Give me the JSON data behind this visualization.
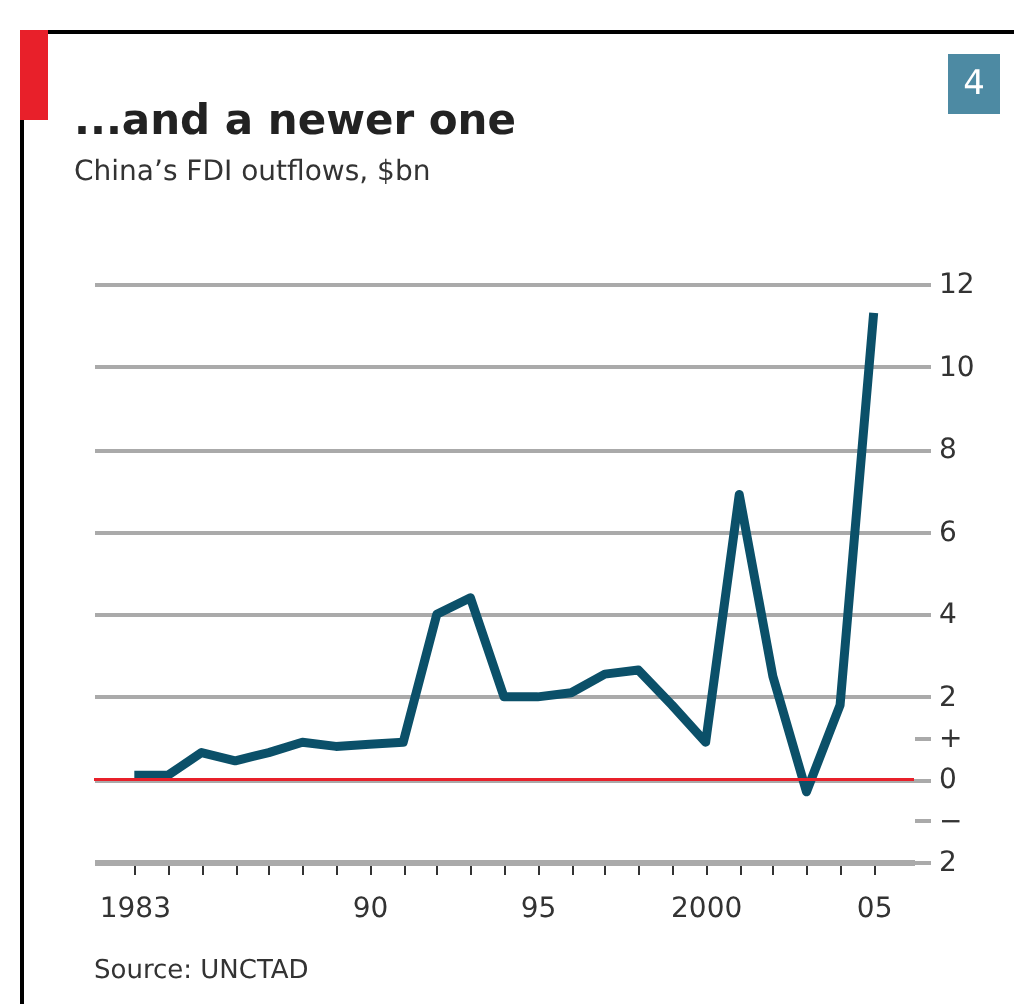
{
  "chart_data": {
    "type": "line",
    "title": "...and a newer one",
    "subtitle": "China’s FDI outflows, $bn",
    "annotations": [
      "Source: UNCTAD",
      "4"
    ],
    "x": [
      1983,
      1984,
      1985,
      1986,
      1987,
      1988,
      1989,
      1990,
      1991,
      1992,
      1993,
      1994,
      1995,
      1996,
      1997,
      1998,
      1999,
      2000,
      2001,
      2002,
      2003,
      2004,
      2005
    ],
    "series": [
      {
        "color": "#0b5069",
        "values": [
          0.1,
          0.1,
          0.65,
          0.45,
          0.65,
          0.9,
          0.8,
          0.85,
          0.9,
          4.0,
          4.4,
          2.0,
          2.0,
          2.1,
          2.55,
          2.65,
          1.8,
          0.9,
          6.9,
          2.5,
          -0.3,
          1.8,
          11.3
        ]
      }
    ],
    "xlim": [
      1981.8,
      2006.2
    ],
    "xticks": [
      {
        "value": 1983,
        "label": "1983"
      },
      {
        "value": 1984,
        "label": null
      },
      {
        "value": 1985,
        "label": null
      },
      {
        "value": 1986,
        "label": null
      },
      {
        "value": 1987,
        "label": null
      },
      {
        "value": 1988,
        "label": null
      },
      {
        "value": 1989,
        "label": null
      },
      {
        "value": 1990,
        "label": "90"
      },
      {
        "value": 1991,
        "label": null
      },
      {
        "value": 1992,
        "label": null
      },
      {
        "value": 1993,
        "label": null
      },
      {
        "value": 1994,
        "label": null
      },
      {
        "value": 1995,
        "label": "95"
      },
      {
        "value": 1996,
        "label": null
      },
      {
        "value": 1997,
        "label": null
      },
      {
        "value": 1998,
        "label": null
      },
      {
        "value": 1999,
        "label": null
      },
      {
        "value": 2000,
        "label": "2000"
      },
      {
        "value": 2001,
        "label": null
      },
      {
        "value": 2002,
        "label": null
      },
      {
        "value": 2003,
        "label": null
      },
      {
        "value": 2004,
        "label": null
      },
      {
        "value": 2005,
        "label": "05"
      }
    ],
    "ylim": [
      -2,
      12
    ],
    "yticks": [
      {
        "value": -2,
        "label": "2"
      },
      {
        "value": -1,
        "label": "−"
      },
      0,
      {
        "value": 1,
        "label": "+"
      },
      2,
      4,
      6,
      8,
      10,
      12
    ],
    "ref_lines": [
      {
        "axis": "y",
        "value": 0,
        "color": "#e8202a"
      }
    ],
    "grid": "y",
    "marker": "none",
    "line_style": "solid",
    "legend": false
  }
}
